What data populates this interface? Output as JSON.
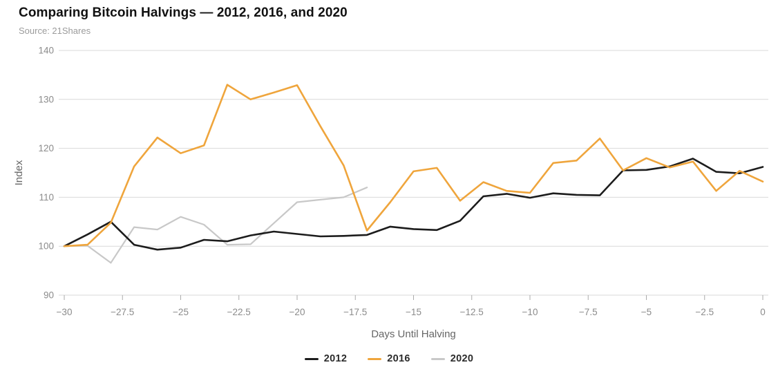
{
  "header": {
    "title": "Comparing Bitcoin Halvings — 2012, 2016, and 2020",
    "source": "Source: 21Shares"
  },
  "chart_data": {
    "type": "line",
    "title": "Comparing Bitcoin Halvings — 2012, 2016, and 2020",
    "xlabel": "Days Until Halving",
    "ylabel": "Index",
    "ylim": [
      90,
      140
    ],
    "yticks": [
      90,
      100,
      110,
      120,
      130,
      140
    ],
    "xticks": [
      -30,
      -27.5,
      -25,
      -22.5,
      -20,
      -17.5,
      -15,
      -12.5,
      -10,
      -7.5,
      -5,
      -2.5,
      0
    ],
    "grid": "horizontal",
    "legend_position": "bottom-center",
    "x": [
      -30,
      -29,
      -28,
      -27,
      -26,
      -25,
      -24,
      -23,
      -22,
      -21,
      -20,
      -19,
      -18,
      -17,
      -16,
      -15,
      -14,
      -13,
      -12,
      -11,
      -10,
      -9,
      -8,
      -7,
      -6,
      -5,
      -4,
      -3,
      -2,
      -1,
      0
    ],
    "series": [
      {
        "name": "2012",
        "color": "#1c1c1c",
        "stroke_width": 2.6,
        "z": 2,
        "values": [
          100,
          102.4,
          105,
          100.3,
          99.3,
          99.7,
          101.3,
          101,
          102.2,
          103,
          102.5,
          102,
          102.1,
          102.3,
          104,
          103.5,
          103.3,
          105.2,
          110.2,
          110.7,
          109.9,
          110.8,
          110.5,
          110.4,
          115.5,
          115.6,
          116.3,
          117.9,
          115.2,
          114.9,
          116.2
        ]
      },
      {
        "name": "2016",
        "color": "#efa53c",
        "stroke_width": 2.6,
        "z": 3,
        "values": [
          100,
          100.3,
          104.8,
          116.3,
          122.2,
          119,
          120.6,
          133,
          130,
          131.4,
          132.9,
          124.5,
          116.5,
          103.2,
          109,
          115.3,
          116,
          109.3,
          113.1,
          111.3,
          110.9,
          117,
          117.5,
          122,
          115.5,
          118,
          116.1,
          117.3,
          111.3,
          115.4,
          113.2
        ]
      },
      {
        "name": "2020",
        "color": "#c8c8c8",
        "stroke_width": 2.2,
        "z": 1,
        "values": [
          100,
          100.1,
          96.6,
          103.9,
          103.4,
          106,
          104.4,
          100.3,
          100.4,
          104.7,
          109,
          109.5,
          110,
          112
        ]
      }
    ]
  },
  "colors": {
    "gridline": "#d9d9d9",
    "axis_line": "#cccccc",
    "tick_mark": "#aaaaaa",
    "tick_label": "#8b8b8b",
    "axis_title": "#666666",
    "background": "#ffffff"
  }
}
